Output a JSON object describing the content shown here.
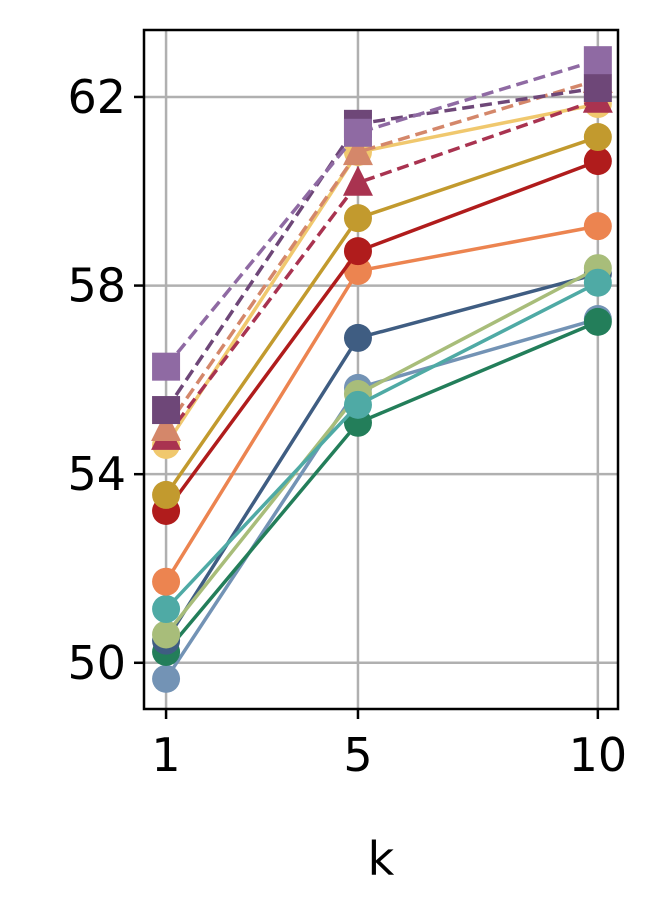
{
  "chart_data": {
    "type": "line",
    "title": "",
    "xlabel": "k",
    "ylabel": "",
    "x": [
      1,
      5,
      10
    ],
    "xticks": [
      1,
      5,
      10
    ],
    "yticks": [
      50,
      54,
      58,
      62
    ],
    "xlim": [
      0.54,
      10.42
    ],
    "ylim": [
      49.02,
      63.42
    ],
    "grid": true,
    "series": [
      {
        "color": "#8f6aa3",
        "marker": "square",
        "linestyle": "dashed",
        "values": [
          56.28,
          61.24,
          62.78
        ]
      },
      {
        "color": "#6e4778",
        "marker": "square",
        "linestyle": "dashed",
        "values": [
          55.36,
          61.43,
          62.19
        ]
      },
      {
        "color": "#d4876a",
        "marker": "triangle",
        "linestyle": "dashed",
        "values": [
          54.98,
          60.83,
          62.36
        ]
      },
      {
        "color": "#a93350",
        "marker": "triangle",
        "linestyle": "dashed",
        "values": [
          54.79,
          60.18,
          61.94
        ]
      },
      {
        "color": "#f0c86e",
        "marker": "circle",
        "linestyle": "solid",
        "values": [
          54.62,
          60.83,
          61.85
        ]
      },
      {
        "color": "#c29a2e",
        "marker": "circle",
        "linestyle": "solid",
        "values": [
          53.56,
          59.43,
          61.15
        ]
      },
      {
        "color": "#b01c1c",
        "marker": "circle",
        "linestyle": "solid",
        "values": [
          53.22,
          58.73,
          60.64
        ]
      },
      {
        "color": "#ec8450",
        "marker": "circle",
        "linestyle": "solid",
        "values": [
          51.72,
          58.31,
          59.26
        ]
      },
      {
        "color": "#4faaa5",
        "marker": "circle",
        "linestyle": "solid",
        "values": [
          51.14,
          55.47,
          58.06
        ]
      },
      {
        "color": "#a8bd7a",
        "marker": "circle",
        "linestyle": "solid",
        "values": [
          50.6,
          55.7,
          58.37
        ]
      },
      {
        "color": "#3f5d82",
        "marker": "circle",
        "linestyle": "solid",
        "values": [
          50.47,
          56.89,
          58.25
        ]
      },
      {
        "color": "#237e5a",
        "marker": "circle",
        "linestyle": "solid",
        "values": [
          50.23,
          55.09,
          57.23
        ]
      },
      {
        "color": "#7393b5",
        "marker": "circle",
        "linestyle": "solid",
        "values": [
          49.66,
          55.83,
          57.29
        ]
      }
    ]
  }
}
